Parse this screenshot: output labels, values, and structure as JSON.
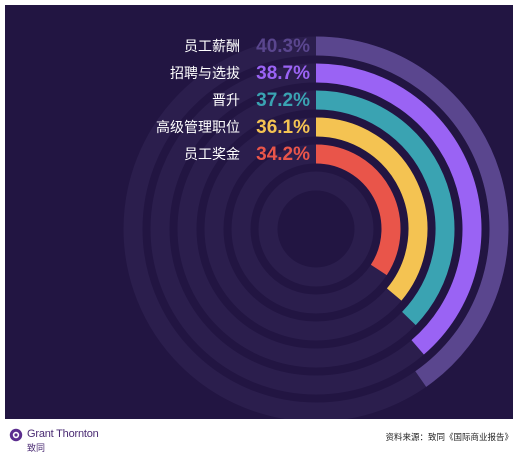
{
  "chart_data": {
    "type": "radial-bar",
    "categories": [
      "员工薪酬",
      "招聘与选拔",
      "晋升",
      "高级管理职位",
      "员工奖金"
    ],
    "values": [
      40.3,
      38.7,
      37.2,
      36.1,
      34.2
    ],
    "value_labels": [
      "40.3%",
      "38.7%",
      "37.2%",
      "36.1%",
      "34.2%"
    ],
    "colors": [
      "#5a468e",
      "#9a63f4",
      "#3aa3b2",
      "#f4c352",
      "#e9554a"
    ],
    "track_color": "#2b1e4d",
    "background": "#221542"
  },
  "footer": {
    "brand": "Grant Thornton",
    "brand_cn": "致同",
    "source": "资料来源：致同《国际商业报告》"
  }
}
